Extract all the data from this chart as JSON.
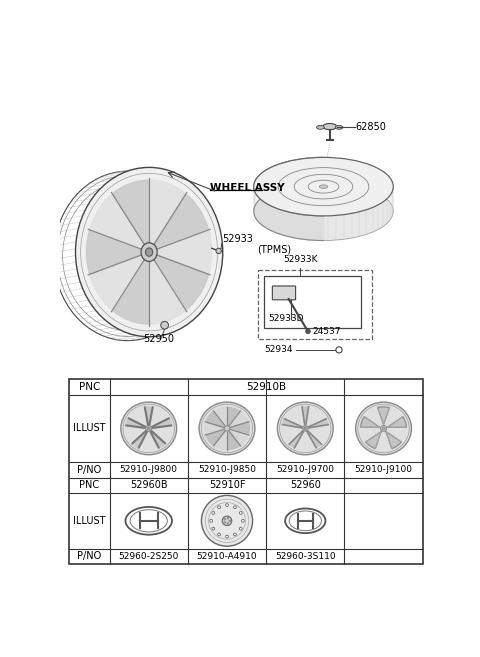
{
  "bg_color": "#ffffff",
  "table": {
    "alloy_pnos": [
      "52910-J9800",
      "52910-J9850",
      "52910-J9700",
      "52910-J9100"
    ],
    "cap_pnos": [
      "52960-2S250",
      "52910-A4910",
      "52960-3S110"
    ],
    "col_pncs": [
      "52960B",
      "52910F",
      "52960"
    ]
  },
  "diagram_labels": {
    "wheel_assy": "WHEEL ASSY",
    "part1": "52933",
    "part2": "52950",
    "spare_part": "62850",
    "tpms_label": "(TPMS)",
    "tpms_part1": "52933K",
    "tpms_part2": "24537",
    "tpms_part3": "52933D",
    "tpms_part4": "52934"
  }
}
